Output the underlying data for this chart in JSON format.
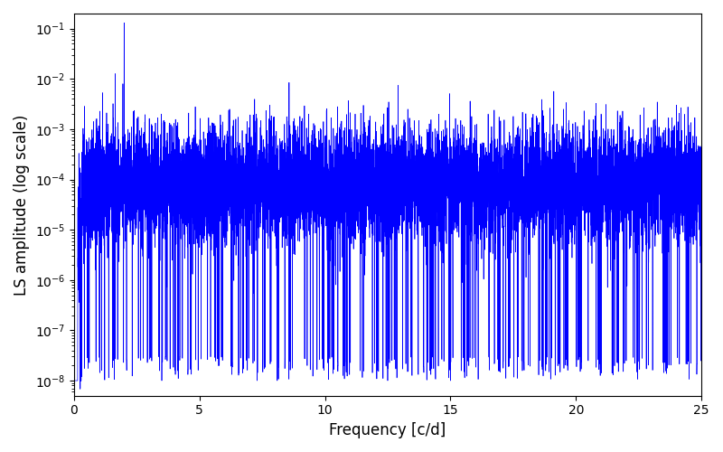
{
  "xlabel": "Frequency [c/d]",
  "ylabel": "LS amplitude (log scale)",
  "line_color": "#0000ff",
  "xlim": [
    0,
    25
  ],
  "ylim_log": [
    -8.3,
    -0.7
  ],
  "freq_min": 0.0,
  "freq_max": 25.0,
  "n_points": 10000,
  "main_peak_freq": 2.0,
  "main_peak_amp": 0.13,
  "figsize": [
    8.0,
    5.0
  ],
  "dpi": 100,
  "xticks": [
    0,
    5,
    10,
    15,
    20,
    25
  ],
  "seed": 42
}
